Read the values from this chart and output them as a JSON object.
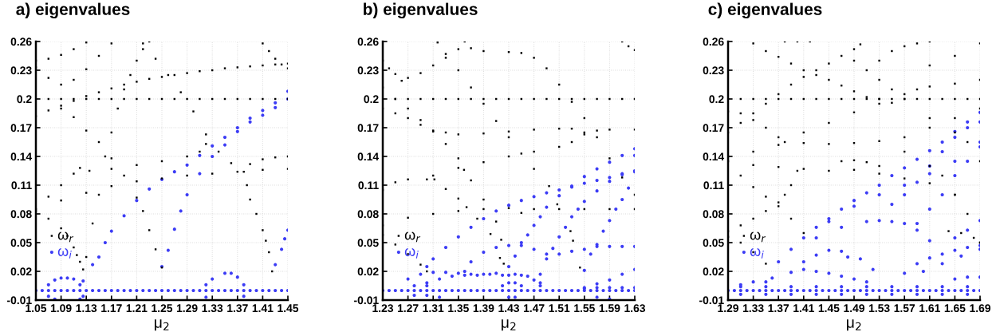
{
  "chart_data": [
    {
      "type": "scatter",
      "title": "a) eigenvalues",
      "xlabel": "μ$_{2}$",
      "xlim": [
        1.05,
        1.45
      ],
      "ylim": [
        -0.01,
        0.26
      ],
      "xticks": [
        1.05,
        1.09,
        1.13,
        1.17,
        1.21,
        1.25,
        1.29,
        1.33,
        1.37,
        1.41,
        1.45
      ],
      "yticks": [
        -0.01,
        0.02,
        0.05,
        0.08,
        0.11,
        0.14,
        0.17,
        0.2,
        0.23,
        0.26
      ],
      "grid": true,
      "legend": "bottom left",
      "series": [
        {
          "name": "ω$_{r}$",
          "color": "#000000",
          "marker": "square",
          "x": [
            1.05,
            1.07,
            1.09,
            1.11,
            1.13,
            1.15,
            1.17,
            1.19,
            1.21,
            1.23,
            1.25,
            1.27,
            1.29,
            1.31,
            1.33,
            1.35,
            1.37,
            1.39,
            1.41,
            1.43,
            1.45,
            1.05,
            1.07,
            1.09,
            1.11,
            1.13,
            1.15,
            1.17,
            1.19,
            1.21,
            1.23,
            1.25,
            1.27,
            1.29,
            1.31,
            1.33,
            1.35,
            1.37,
            1.39,
            1.41,
            1.43,
            1.45,
            1.05,
            1.07,
            1.09,
            1.11,
            1.13,
            1.05,
            1.07,
            1.09,
            1.11,
            1.13,
            1.15,
            1.17,
            1.09,
            1.11,
            1.13,
            1.15,
            1.17,
            1.19,
            1.21,
            1.22,
            1.23,
            1.24,
            1.25,
            1.125,
            1.13,
            1.14,
            1.15,
            1.16,
            1.17,
            1.18,
            1.19,
            1.2,
            1.21,
            1.22,
            1.23,
            1.22,
            1.24,
            1.26,
            1.28,
            1.3,
            1.32,
            1.34,
            1.36,
            1.38,
            1.385,
            1.39,
            1.4,
            1.41,
            1.415,
            1.42,
            1.425,
            1.05,
            1.07,
            1.09,
            1.11,
            1.12,
            1.135,
            1.17,
            1.21,
            1.25,
            1.29,
            1.31,
            1.32,
            1.39,
            1.41,
            1.43,
            1.45,
            1.05,
            1.09,
            1.13,
            1.17,
            1.21,
            1.25,
            1.29,
            1.33,
            1.37,
            1.41,
            1.45,
            1.05,
            1.07,
            1.09,
            1.1,
            1.11,
            1.115,
            1.12,
            1.41,
            1.42,
            1.43,
            1.44,
            1.45
          ],
          "values": [
            0.2,
            0.2,
            0.2,
            0.2,
            0.2,
            0.2,
            0.2,
            0.2,
            0.2,
            0.2,
            0.2,
            0.2,
            0.2,
            0.2,
            0.2,
            0.2,
            0.2,
            0.2,
            0.2,
            0.2,
            0.2,
            0.182,
            0.188,
            0.193,
            0.198,
            0.203,
            0.207,
            0.211,
            0.215,
            0.218,
            0.221,
            0.223,
            0.225,
            0.227,
            0.229,
            0.23,
            0.232,
            0.233,
            0.234,
            0.235,
            0.236,
            0.237,
            0.24,
            0.242,
            0.246,
            0.252,
            0.259,
            0.233,
            0.222,
            0.215,
            0.22,
            0.231,
            0.245,
            0.258,
            0.19,
            0.181,
            0.167,
            0.155,
            0.138,
            0.12,
            0.097,
            0.083,
            0.063,
            0.043,
            0.024,
            0.022,
            0.035,
            0.07,
            0.1,
            0.14,
            0.165,
            0.19,
            0.21,
            0.225,
            0.24,
            0.252,
            0.26,
            0.258,
            0.242,
            0.225,
            0.207,
            0.187,
            0.163,
            0.145,
            0.133,
            0.124,
            0.11,
            0.095,
            0.08,
            0.063,
            0.052,
            0.04,
            0.02,
            0.11,
            0.098,
            0.11,
            0.122,
            0.128,
            0.125,
            0.127,
            0.131,
            0.135,
            0.14,
            0.145,
            0.153,
            0.132,
            0.137,
            0.139,
            0.14,
            0.085,
            0.094,
            0.102,
            0.109,
            0.114,
            0.117,
            0.12,
            0.122,
            0.124,
            0.126,
            0.127,
            0.083,
            0.075,
            0.065,
            0.057,
            0.045,
            0.037,
            0.03,
            0.258,
            0.25,
            0.242,
            0.236,
            0.232
          ]
        },
        {
          "name": "ω$_{i}$",
          "color": "#3c3cf5",
          "marker": "circle",
          "x": [
            1.05,
            1.06,
            1.07,
            1.08,
            1.09,
            1.1,
            1.11,
            1.12,
            1.13,
            1.14,
            1.15,
            1.16,
            1.17,
            1.18,
            1.19,
            1.2,
            1.21,
            1.22,
            1.23,
            1.24,
            1.25,
            1.26,
            1.27,
            1.28,
            1.29,
            1.3,
            1.31,
            1.32,
            1.33,
            1.34,
            1.35,
            1.36,
            1.37,
            1.38,
            1.39,
            1.4,
            1.41,
            1.42,
            1.43,
            1.44,
            1.45,
            1.125,
            1.14,
            1.15,
            1.16,
            1.17,
            1.19,
            1.21,
            1.23,
            1.25,
            1.27,
            1.29,
            1.31,
            1.33,
            1.35,
            1.37,
            1.39,
            1.41,
            1.43,
            1.45,
            1.25,
            1.26,
            1.27,
            1.28,
            1.29,
            1.31,
            1.33,
            1.35,
            1.37,
            1.39,
            1.41,
            1.43,
            1.45,
            1.07,
            1.08,
            1.09,
            1.1,
            1.11,
            1.12,
            1.07,
            1.08,
            1.12,
            1.125,
            1.32,
            1.33,
            1.35,
            1.36,
            1.37,
            1.38,
            1.32,
            1.38,
            1.43,
            1.44,
            1.445,
            1.45
          ],
          "values": [
            0,
            0,
            0,
            0,
            0,
            0,
            0,
            0,
            0,
            0,
            0,
            0,
            0,
            0,
            0,
            0,
            0,
            0,
            0,
            0,
            0,
            0,
            0,
            0,
            0,
            0,
            0,
            0,
            0,
            0,
            0,
            0,
            0,
            0,
            0,
            0,
            0,
            0,
            0,
            0,
            0,
            0.01,
            0.027,
            0.035,
            0.05,
            0.062,
            0.078,
            0.094,
            0.106,
            0.116,
            0.124,
            0.131,
            0.141,
            0.151,
            0.16,
            0.17,
            0.18,
            0.188,
            0.196,
            0.208,
            0.025,
            0.042,
            0.064,
            0.083,
            0.1,
            0.122,
            0.14,
            0.152,
            0.166,
            0.176,
            0.183,
            0.191,
            0.2,
            0.006,
            0.011,
            0.013,
            0.013,
            0.012,
            0.006,
            -0.006,
            -0.009,
            -0.009,
            -0.006,
            0.006,
            0.012,
            0.018,
            0.018,
            0.014,
            0.006,
            -0.007,
            -0.006,
            0.027,
            0.043,
            0.054,
            0.063
          ]
        }
      ]
    },
    {
      "type": "scatter",
      "title": "b) eigenvalues",
      "xlabel": "μ$_{2}$",
      "xlim": [
        1.23,
        1.63
      ],
      "ylim": [
        -0.01,
        0.26
      ],
      "xticks": [
        1.23,
        1.27,
        1.31,
        1.35,
        1.39,
        1.43,
        1.47,
        1.51,
        1.55,
        1.59,
        1.63
      ],
      "yticks": [
        -0.01,
        0.02,
        0.05,
        0.08,
        0.11,
        0.14,
        0.17,
        0.2,
        0.23,
        0.26
      ],
      "grid": true,
      "legend": "bottom left",
      "series": [
        {
          "name": "ω$_{r}$",
          "color": "#000000",
          "marker": "square",
          "x": [
            1.23,
            1.25,
            1.27,
            1.29,
            1.31,
            1.33,
            1.35,
            1.37,
            1.39,
            1.41,
            1.43,
            1.45,
            1.47,
            1.49,
            1.51,
            1.53,
            1.55,
            1.57,
            1.59,
            1.61,
            1.63,
            1.23,
            1.24,
            1.25,
            1.26,
            1.27,
            1.29,
            1.31,
            1.33,
            1.35,
            1.36,
            1.37,
            1.39,
            1.43,
            1.45,
            1.47,
            1.49,
            1.51,
            1.53,
            1.55,
            1.57,
            1.59,
            1.61,
            1.63,
            1.317,
            1.33,
            1.35,
            1.37,
            1.39,
            1.41,
            1.43,
            1.45,
            1.47,
            1.494,
            1.507,
            1.528,
            1.532,
            1.543,
            1.23,
            1.25,
            1.27,
            1.29,
            1.31,
            1.33,
            1.35,
            1.359,
            1.37,
            1.39,
            1.41,
            1.418,
            1.422,
            1.23,
            1.25,
            1.27,
            1.29,
            1.31,
            1.33,
            1.35,
            1.39,
            1.43,
            1.47,
            1.51,
            1.53,
            1.55,
            1.57,
            1.59,
            1.63,
            1.31,
            1.35,
            1.39,
            1.43,
            1.47,
            1.51,
            1.53,
            1.55,
            1.23,
            1.25,
            1.27,
            1.3,
            1.312,
            1.33,
            1.35,
            1.363,
            1.38,
            1.401,
            1.416,
            1.23,
            1.27,
            1.31,
            1.35,
            1.39,
            1.43,
            1.45,
            1.47,
            1.51,
            1.55,
            1.59,
            1.63,
            1.23,
            1.25,
            1.27,
            1.29,
            1.3,
            1.61,
            1.62,
            1.63
          ],
          "values": [
            0.2,
            0.2,
            0.2,
            0.2,
            0.2,
            0.2,
            0.2,
            0.2,
            0.2,
            0.2,
            0.2,
            0.2,
            0.2,
            0.2,
            0.2,
            0.2,
            0.2,
            0.2,
            0.2,
            0.2,
            0.2,
            0.24,
            0.232,
            0.226,
            0.219,
            0.222,
            0.227,
            0.235,
            0.243,
            0.252,
            0.26,
            0.253,
            0.25,
            0.249,
            0.248,
            0.243,
            0.232,
            0.215,
            0.197,
            0.18,
            0.16,
            0.138,
            0.118,
            0.1,
            0.259,
            0.247,
            0.23,
            0.212,
            0.195,
            0.177,
            0.16,
            0.143,
            0.127,
            0.109,
            0.09,
            0.062,
            0.052,
            0.024,
            0.212,
            0.2,
            0.19,
            0.178,
            0.166,
            0.153,
            0.138,
            0.126,
            0.115,
            0.095,
            0.072,
            0.053,
            0.028,
            0.19,
            0.185,
            0.18,
            0.173,
            0.167,
            0.165,
            0.163,
            0.164,
            0.166,
            0.168,
            0.169,
            0.169,
            0.165,
            0.167,
            0.168,
            0.168,
            0.12,
            0.128,
            0.134,
            0.14,
            0.145,
            0.15,
            0.155,
            0.163,
            0.105,
            0.113,
            0.116,
            0.116,
            0.116,
            0.106,
            0.096,
            0.087,
            0.075,
            0.059,
            0.034,
            0.068,
            0.076,
            0.08,
            0.083,
            0.085,
            0.086,
            0.081,
            0.085,
            0.085,
            0.085,
            0.085,
            0.085,
            0.058,
            0.048,
            0.038,
            0.027,
            0.02,
            0.26,
            0.255,
            0.251
          ]
        },
        {
          "name": "ω$_{i}$",
          "color": "#3c3cf5",
          "marker": "circle",
          "x": [
            1.23,
            1.24,
            1.25,
            1.26,
            1.27,
            1.28,
            1.29,
            1.3,
            1.31,
            1.32,
            1.33,
            1.34,
            1.35,
            1.36,
            1.37,
            1.38,
            1.39,
            1.4,
            1.41,
            1.42,
            1.43,
            1.44,
            1.45,
            1.46,
            1.47,
            1.48,
            1.49,
            1.5,
            1.51,
            1.52,
            1.53,
            1.54,
            1.55,
            1.56,
            1.57,
            1.58,
            1.59,
            1.6,
            1.61,
            1.62,
            1.63,
            1.55,
            1.57,
            1.59,
            1.61,
            1.63,
            1.57,
            1.59,
            1.3,
            1.31,
            1.33,
            1.35,
            1.37,
            1.39,
            1.41,
            1.43,
            1.45,
            1.47,
            1.49,
            1.51,
            1.53,
            1.55,
            1.57,
            1.59,
            1.61,
            1.63,
            1.43,
            1.44,
            1.45,
            1.46,
            1.47,
            1.48,
            1.49,
            1.51,
            1.53,
            1.55,
            1.57,
            1.59,
            1.61,
            1.63,
            1.48,
            1.49,
            1.5,
            1.51,
            1.52,
            1.53,
            1.54,
            1.55,
            1.57,
            1.59,
            1.61,
            1.63,
            1.55,
            1.56,
            1.57,
            1.58,
            1.59,
            1.6,
            1.61,
            1.62,
            1.63,
            1.36,
            1.37,
            1.39,
            1.41,
            1.43,
            1.45,
            1.47,
            1.49,
            1.51,
            1.53,
            1.55,
            1.57,
            1.59,
            1.61,
            1.63,
            1.27,
            1.29,
            1.31,
            1.33,
            1.35,
            1.37,
            1.39,
            1.41,
            1.43,
            1.45,
            1.47,
            1.48,
            1.3,
            1.32,
            1.34,
            1.36,
            1.38,
            1.4,
            1.42,
            1.44,
            1.46,
            1.48,
            1.42,
            1.43,
            1.44,
            1.45,
            1.43,
            1.44,
            1.28,
            1.3,
            1.28,
            1.3,
            1.32,
            1.55,
            1.57,
            1.59,
            1.61,
            1.63
          ],
          "values": [
            0,
            0,
            0,
            0,
            0,
            0,
            0,
            0,
            0,
            0,
            0,
            0,
            0,
            0,
            0,
            0,
            0,
            0,
            0,
            0,
            0,
            0,
            0,
            0,
            0,
            0,
            0,
            0,
            0,
            0,
            0,
            0,
            0,
            0,
            0,
            0,
            0,
            0,
            0,
            0,
            0,
            0.003,
            0.003,
            0.003,
            0.003,
            0.003,
            -0.007,
            -0.009,
            0.025,
            0.033,
            0.045,
            0.056,
            0.066,
            0.075,
            0.083,
            0.089,
            0.094,
            0.098,
            0.102,
            0.105,
            0.108,
            0.112,
            0.115,
            0.118,
            0.121,
            0.124,
            0.025,
            0.036,
            0.05,
            0.058,
            0.068,
            0.077,
            0.087,
            0.099,
            0.109,
            0.119,
            0.127,
            0.134,
            0.141,
            0.148,
            0.017,
            0.033,
            0.044,
            0.056,
            0.066,
            0.077,
            0.085,
            0.093,
            0.104,
            0.114,
            0.122,
            0.141,
            0.021,
            0.038,
            0.048,
            0.062,
            0.073,
            0.085,
            0.095,
            0.107,
            0.125,
            0.02,
            0.03,
            0.04,
            0.045,
            0.047,
            0.047,
            0.043,
            0.038,
            0.038,
            0.041,
            0.043,
            0.046,
            0.046,
            0.046,
            0.046,
            0.012,
            0.017,
            0.019,
            0.019,
            0.018,
            0.017,
            0.017,
            0.018,
            0.016,
            0.016,
            0.011,
            0.005,
            0.008,
            0.012,
            0.015,
            0.016,
            0.016,
            0.017,
            0.016,
            0.017,
            0.015,
            0.008,
            0.005,
            0.008,
            0.008,
            0.005,
            -0.007,
            -0.007,
            0.005,
            0.005,
            -0.005,
            -0.005,
            -0.007,
            0.002,
            0.007,
            0.011,
            0.017,
            0.022
          ]
        }
      ]
    },
    {
      "type": "scatter",
      "title": "c) eigenvalues",
      "xlabel": "μ$_{2}$",
      "xlim": [
        1.29,
        1.69
      ],
      "ylim": [
        -0.01,
        0.26
      ],
      "xticks": [
        1.29,
        1.33,
        1.37,
        1.41,
        1.45,
        1.49,
        1.53,
        1.57,
        1.61,
        1.65,
        1.69
      ],
      "yticks": [
        -0.01,
        0.02,
        0.05,
        0.08,
        0.11,
        0.14,
        0.17,
        0.2,
        0.23,
        0.26
      ],
      "grid": true,
      "legend": "bottom left",
      "series": [
        {
          "name": "ω$_{r}$",
          "color": "#000000",
          "marker": "square",
          "x": [
            1.29,
            1.31,
            1.33,
            1.35,
            1.37,
            1.39,
            1.41,
            1.43,
            1.45,
            1.47,
            1.49,
            1.51,
            1.53,
            1.55,
            1.57,
            1.59,
            1.61,
            1.63,
            1.65,
            1.67,
            1.69,
            1.29,
            1.31,
            1.33,
            1.35,
            1.37,
            1.39,
            1.41,
            1.43,
            1.45,
            1.47,
            1.49,
            1.5,
            1.33,
            1.35,
            1.37,
            1.39,
            1.41,
            1.43,
            1.45,
            1.47,
            1.49,
            1.51,
            1.53,
            1.55,
            1.29,
            1.31,
            1.33,
            1.35,
            1.37,
            1.38,
            1.41,
            1.45,
            1.49,
            1.53,
            1.57,
            1.61,
            1.65,
            1.69,
            1.29,
            1.33,
            1.37,
            1.41,
            1.45,
            1.49,
            1.53,
            1.57,
            1.29,
            1.33,
            1.37,
            1.41,
            1.45,
            1.49,
            1.53,
            1.57,
            1.61,
            1.65,
            1.31,
            1.33,
            1.35,
            1.37,
            1.39,
            1.41,
            1.29,
            1.31,
            1.33,
            1.35,
            1.37,
            1.38,
            1.39,
            1.4,
            1.29,
            1.31,
            1.33,
            1.35,
            1.38,
            1.4,
            1.42,
            1.49,
            1.51,
            1.53,
            1.55,
            1.57,
            1.59,
            1.61,
            1.65,
            1.69,
            1.61,
            1.65,
            1.69,
            1.53,
            1.55,
            1.57,
            1.59,
            1.61,
            1.57,
            1.61,
            1.63,
            1.65,
            1.67,
            1.69,
            1.61,
            1.65,
            1.67,
            1.69,
            1.47,
            1.49,
            1.51,
            1.53,
            1.64,
            1.66,
            1.68,
            1.69
          ],
          "values": [
            0.2,
            0.2,
            0.2,
            0.2,
            0.2,
            0.2,
            0.2,
            0.2,
            0.2,
            0.2,
            0.2,
            0.2,
            0.2,
            0.2,
            0.2,
            0.2,
            0.2,
            0.2,
            0.2,
            0.2,
            0.2,
            0.165,
            0.175,
            0.185,
            0.195,
            0.205,
            0.215,
            0.223,
            0.23,
            0.237,
            0.245,
            0.252,
            0.257,
            0.258,
            0.25,
            0.244,
            0.237,
            0.23,
            0.225,
            0.22,
            0.214,
            0.208,
            0.202,
            0.2,
            0.196,
            0.187,
            0.185,
            0.178,
            0.17,
            0.16,
            0.155,
            0.154,
            0.153,
            0.154,
            0.156,
            0.16,
            0.17,
            0.18,
            0.19,
            0.14,
            0.145,
            0.152,
            0.165,
            0.175,
            0.186,
            0.195,
            0.2,
            0.135,
            0.131,
            0.129,
            0.127,
            0.125,
            0.126,
            0.122,
            0.117,
            0.112,
            0.1,
            0.12,
            0.108,
            0.098,
            0.088,
            0.075,
            0.06,
            0.062,
            0.068,
            0.075,
            0.083,
            0.092,
            0.1,
            0.11,
            0.125,
            0.056,
            0.05,
            0.04,
            0.028,
            0.26,
            0.26,
            0.26,
            0.24,
            0.23,
            0.22,
            0.21,
            0.205,
            0.21,
            0.213,
            0.216,
            0.22,
            0.235,
            0.245,
            0.258,
            0.24,
            0.25,
            0.255,
            0.258,
            0.26,
            0.145,
            0.13,
            0.12,
            0.1,
            0.08,
            0.05,
            0.18,
            0.165,
            0.155,
            0.135,
            0.135,
            0.136,
            0.134,
            0.13,
            0.062,
            0.06,
            0.055,
            0.05
          ]
        },
        {
          "name": "ω$_{i}$",
          "color": "#3c3cf5",
          "marker": "circle",
          "x": [
            1.29,
            1.3,
            1.31,
            1.32,
            1.33,
            1.34,
            1.35,
            1.36,
            1.37,
            1.38,
            1.39,
            1.4,
            1.41,
            1.42,
            1.43,
            1.44,
            1.45,
            1.46,
            1.47,
            1.48,
            1.49,
            1.5,
            1.51,
            1.52,
            1.53,
            1.54,
            1.55,
            1.56,
            1.57,
            1.58,
            1.59,
            1.6,
            1.61,
            1.62,
            1.63,
            1.64,
            1.65,
            1.66,
            1.67,
            1.68,
            1.69,
            1.31,
            1.35,
            1.39,
            1.43,
            1.47,
            1.51,
            1.55,
            1.59,
            1.63,
            1.67,
            1.31,
            1.35,
            1.39,
            1.43,
            1.47,
            1.51,
            1.55,
            1.59,
            1.63,
            1.67,
            1.37,
            1.39,
            1.41,
            1.43,
            1.45,
            1.47,
            1.49,
            1.51,
            1.53,
            1.55,
            1.57,
            1.59,
            1.61,
            1.63,
            1.65,
            1.67,
            1.69,
            1.45,
            1.49,
            1.53,
            1.57,
            1.61,
            1.65,
            1.69,
            1.55,
            1.57,
            1.59,
            1.61,
            1.63,
            1.65,
            1.67,
            1.69,
            1.59,
            1.61,
            1.63,
            1.65,
            1.67,
            1.69,
            1.43,
            1.47,
            1.51,
            1.53,
            1.55,
            1.57,
            1.59,
            1.61,
            1.36,
            1.39,
            1.41,
            1.43,
            1.45,
            1.47,
            1.49,
            1.51,
            1.41,
            1.43,
            1.45,
            1.47,
            1.48,
            1.5,
            1.52,
            1.57,
            1.59,
            1.61,
            1.63,
            1.65,
            1.67,
            1.69,
            1.6,
            1.63,
            1.66,
            1.69,
            1.65,
            1.67,
            1.69,
            1.31,
            1.33,
            1.35,
            1.65,
            1.67,
            1.69
          ],
          "values": [
            0,
            0,
            0,
            0,
            0,
            0,
            0,
            0,
            0,
            0,
            0,
            0,
            0,
            0,
            0,
            0,
            0,
            0,
            0,
            0,
            0,
            0,
            0,
            0,
            0,
            0,
            0,
            0,
            0,
            0,
            0,
            0,
            0,
            0,
            0,
            0,
            0,
            0,
            0,
            0,
            0,
            0.004,
            0.004,
            0.004,
            0.004,
            0.004,
            0.004,
            0.004,
            0.004,
            0.004,
            0.004,
            -0.004,
            -0.004,
            -0.004,
            -0.004,
            -0.004,
            -0.004,
            -0.004,
            -0.004,
            -0.004,
            -0.004,
            0.03,
            0.043,
            0.055,
            0.066,
            0.075,
            0.085,
            0.094,
            0.102,
            0.11,
            0.12,
            0.128,
            0.137,
            0.146,
            0.155,
            0.166,
            0.176,
            0.186,
            0.072,
            0.088,
            0.1,
            0.11,
            0.122,
            0.135,
            0.15,
            0.09,
            0.1,
            0.113,
            0.13,
            0.145,
            0.16,
            0.17,
            0.176,
            0.07,
            0.085,
            0.1,
            0.12,
            0.135,
            0.155,
            0.055,
            0.066,
            0.072,
            0.073,
            0.072,
            0.07,
            0.063,
            0.052,
            0.013,
            0.019,
            0.022,
            0.02,
            0.018,
            0.015,
            0.012,
            0.009,
            0.03,
            0.037,
            0.042,
            0.041,
            0.035,
            0.033,
            0.022,
            0.018,
            0.028,
            0.034,
            0.038,
            0.042,
            0.045,
            0.047,
            0.02,
            0.028,
            0.036,
            0.043,
            0.055,
            0.063,
            0.073,
            0.006,
            0.009,
            0.009,
            0.012,
            0.014,
            0.014
          ]
        }
      ]
    }
  ]
}
